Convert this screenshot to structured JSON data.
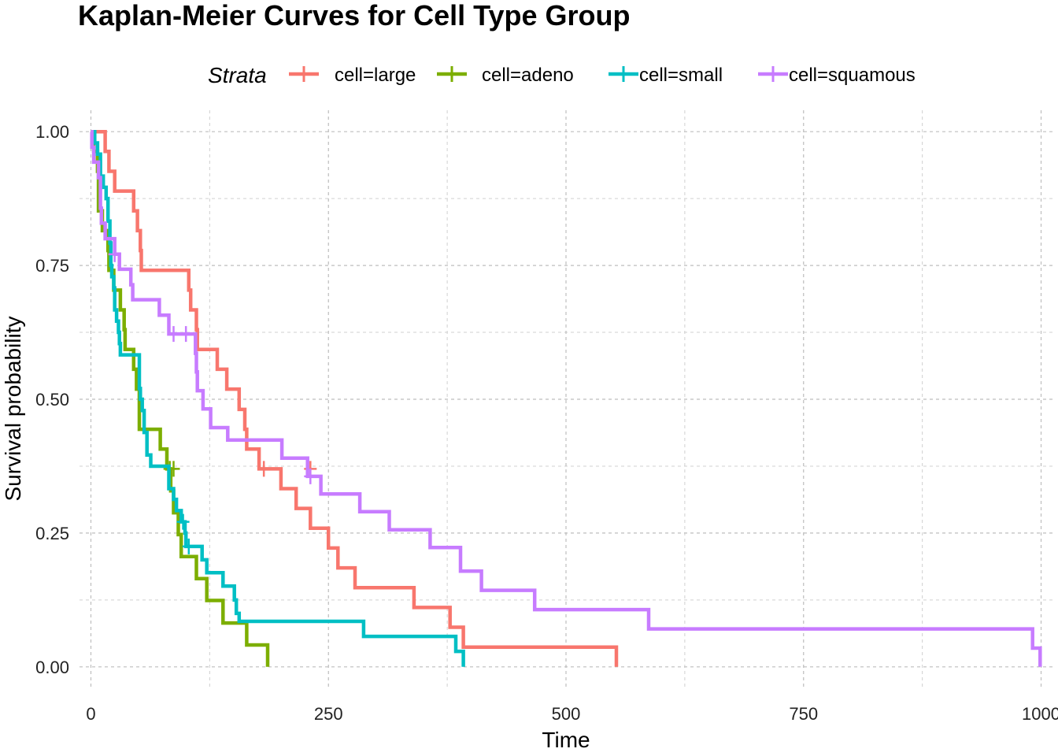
{
  "chart_data": {
    "type": "line",
    "subtype": "kaplan-meier step",
    "title": "Kaplan-Meier Curves for Cell Type Group",
    "xlabel": "Time",
    "ylabel": "Survival probability",
    "xlim": [
      -12,
      1012
    ],
    "ylim": [
      -0.04,
      1.04
    ],
    "x_ticks": [
      0,
      250,
      500,
      750,
      1000
    ],
    "x_tick_labels": [
      "0",
      "250",
      "500",
      "750",
      "1000"
    ],
    "y_ticks": [
      0,
      0.25,
      0.5,
      0.75,
      1
    ],
    "y_tick_labels": [
      "0.00",
      "0.25",
      "0.50",
      "0.75",
      "1.00"
    ],
    "grid": true,
    "grid_style": "dashed",
    "legend": {
      "title": "Strata",
      "position": "top"
    },
    "series": [
      {
        "name": "cell=large",
        "color": "#F8766D",
        "steps": [
          [
            0,
            1
          ],
          [
            15,
            0.963
          ],
          [
            19,
            0.926
          ],
          [
            25,
            0.889
          ],
          [
            45,
            0.852
          ],
          [
            49,
            0.815
          ],
          [
            52,
            0.778
          ],
          [
            53,
            0.741
          ],
          [
            103,
            0.704
          ],
          [
            105,
            0.667
          ],
          [
            111,
            0.63
          ],
          [
            112,
            0.593
          ],
          [
            133,
            0.556
          ],
          [
            143,
            0.519
          ],
          [
            156,
            0.481
          ],
          [
            162,
            0.444
          ],
          [
            164,
            0.407
          ],
          [
            177,
            0.37
          ],
          [
            200,
            0.333
          ],
          [
            216,
            0.296
          ],
          [
            231,
            0.259
          ],
          [
            250,
            0.222
          ],
          [
            260,
            0.185
          ],
          [
            278,
            0.148
          ],
          [
            340,
            0.111
          ],
          [
            378,
            0.074
          ],
          [
            392,
            0.037
          ],
          [
            553,
            0
          ]
        ],
        "end_time": 553,
        "censored": [
          [
            182,
            0.37
          ],
          [
            231,
            0.37
          ]
        ]
      },
      {
        "name": "cell=adeno",
        "color": "#7CAE00",
        "steps": [
          [
            0,
            1
          ],
          [
            3,
            0.963
          ],
          [
            7,
            0.926
          ],
          [
            8,
            0.852
          ],
          [
            12,
            0.815
          ],
          [
            18,
            0.778
          ],
          [
            19,
            0.741
          ],
          [
            24,
            0.704
          ],
          [
            31,
            0.667
          ],
          [
            35,
            0.63
          ],
          [
            36,
            0.593
          ],
          [
            45,
            0.556
          ],
          [
            48,
            0.519
          ],
          [
            51,
            0.444
          ],
          [
            73,
            0.407
          ],
          [
            80,
            0.37
          ],
          [
            84,
            0.329
          ],
          [
            87,
            0.288
          ],
          [
            92,
            0.247
          ],
          [
            95,
            0.206
          ],
          [
            111,
            0.165
          ],
          [
            122,
            0.124
          ],
          [
            139,
            0.082
          ],
          [
            164,
            0.041
          ],
          [
            186,
            0
          ]
        ],
        "end_time": 186,
        "censored": [
          [
            83,
            0.37
          ],
          [
            87,
            0.37
          ]
        ]
      },
      {
        "name": "cell=small",
        "color": "#00BFC4",
        "steps": [
          [
            0,
            1
          ],
          [
            4,
            0.979
          ],
          [
            7,
            0.958
          ],
          [
            10,
            0.917
          ],
          [
            13,
            0.896
          ],
          [
            16,
            0.875
          ],
          [
            18,
            0.833
          ],
          [
            20,
            0.792
          ],
          [
            21,
            0.75
          ],
          [
            22,
            0.729
          ],
          [
            24,
            0.708
          ],
          [
            25,
            0.667
          ],
          [
            27,
            0.646
          ],
          [
            29,
            0.625
          ],
          [
            30,
            0.604
          ],
          [
            31,
            0.583
          ],
          [
            51,
            0.52
          ],
          [
            52,
            0.5
          ],
          [
            54,
            0.479
          ],
          [
            56,
            0.438
          ],
          [
            59,
            0.396
          ],
          [
            63,
            0.375
          ],
          [
            82,
            0.333
          ],
          [
            87,
            0.313
          ],
          [
            90,
            0.292
          ],
          [
            95,
            0.271
          ],
          [
            99,
            0.25
          ],
          [
            100,
            0.225
          ],
          [
            117,
            0.2
          ],
          [
            122,
            0.176
          ],
          [
            139,
            0.151
          ],
          [
            151,
            0.125
          ],
          [
            153,
            0.1
          ],
          [
            156,
            0.085
          ],
          [
            287,
            0.057
          ],
          [
            384,
            0.029
          ],
          [
            392,
            0
          ]
        ],
        "end_time": 392,
        "censored": [
          [
            97,
            0.271
          ],
          [
            103,
            0.225
          ]
        ]
      },
      {
        "name": "cell=squamous",
        "color": "#C77CFF",
        "steps": [
          [
            0,
            1
          ],
          [
            1,
            0.971
          ],
          [
            3,
            0.943
          ],
          [
            8,
            0.914
          ],
          [
            10,
            0.857
          ],
          [
            11,
            0.829
          ],
          [
            15,
            0.8
          ],
          [
            25,
            0.771
          ],
          [
            30,
            0.743
          ],
          [
            42,
            0.714
          ],
          [
            44,
            0.686
          ],
          [
            72,
            0.657
          ],
          [
            82,
            0.622
          ],
          [
            110,
            0.586
          ],
          [
            111,
            0.551
          ],
          [
            112,
            0.516
          ],
          [
            118,
            0.482
          ],
          [
            126,
            0.447
          ],
          [
            144,
            0.424
          ],
          [
            201,
            0.39
          ],
          [
            228,
            0.356
          ],
          [
            242,
            0.323
          ],
          [
            283,
            0.29
          ],
          [
            314,
            0.256
          ],
          [
            357,
            0.223
          ],
          [
            389,
            0.179
          ],
          [
            411,
            0.143
          ],
          [
            467,
            0.107
          ],
          [
            587,
            0.071
          ],
          [
            991,
            0.035
          ],
          [
            999,
            0
          ]
        ],
        "end_time": 999,
        "censored": [
          [
            25,
            0.771
          ],
          [
            87,
            0.622
          ],
          [
            100,
            0.622
          ],
          [
            231,
            0.356
          ]
        ]
      }
    ]
  }
}
